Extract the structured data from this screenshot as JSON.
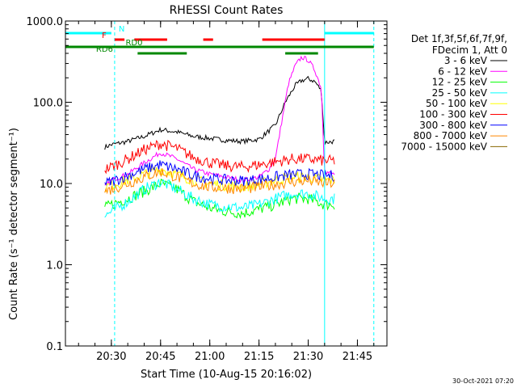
{
  "chart_data": {
    "type": "line",
    "title": "RHESSI Count Rates",
    "xlabel": "Start Time (10-Aug-15 20:16:02)",
    "ylabel": "Count Rate (s⁻¹ detector segment⁻¹)",
    "yscale": "log",
    "ylim": [
      0.1,
      1000
    ],
    "xlim": [
      "20:16",
      "21:54"
    ],
    "x_ticks": [
      "20:30",
      "20:45",
      "21:00",
      "21:15",
      "21:30",
      "21:45"
    ],
    "y_ticks": [
      "0.1",
      "1.0",
      "10.0",
      "100.0",
      "1000.0"
    ],
    "grid": false,
    "legend_position": "right",
    "legend_header": [
      "Det 1f,3f,5f,6f,7f,9f,",
      "FDecim 1, Att 0"
    ],
    "timestamp": "30-Oct-2021 07:20",
    "series": [
      {
        "name": "3 - 6 keV",
        "color": "#000000",
        "x": [
          "20:28",
          "20:30",
          "20:35",
          "20:40",
          "20:45",
          "20:50",
          "20:55",
          "21:00",
          "21:05",
          "21:10",
          "21:15",
          "21:20",
          "21:23",
          "21:26",
          "21:28",
          "21:30",
          "21:32",
          "21:34",
          "21:35",
          "21:38"
        ],
        "y": [
          28,
          30,
          33,
          38,
          46,
          43,
          38,
          36,
          34,
          33,
          35,
          52,
          100,
          160,
          185,
          195,
          180,
          140,
          32,
          33
        ]
      },
      {
        "name": "6 - 12 keV",
        "color": "#ff00ff",
        "x": [
          "20:28",
          "20:30",
          "20:35",
          "20:40",
          "20:45",
          "20:50",
          "20:55",
          "21:00",
          "21:05",
          "21:10",
          "21:15",
          "21:18",
          "21:20",
          "21:22",
          "21:24",
          "21:26",
          "21:28",
          "21:30",
          "21:32",
          "21:34",
          "21:35",
          "21:38"
        ],
        "y": [
          9,
          11,
          13,
          18,
          24,
          20,
          15,
          13,
          12,
          11,
          12,
          15,
          20,
          60,
          170,
          280,
          360,
          330,
          250,
          150,
          14,
          13
        ]
      },
      {
        "name": "12 - 25 keV",
        "color": "#00ff00",
        "x": [
          "20:28",
          "20:30",
          "20:35",
          "20:40",
          "20:45",
          "20:50",
          "20:55",
          "21:00",
          "21:05",
          "21:10",
          "21:15",
          "21:20",
          "21:25",
          "21:30",
          "21:35",
          "21:38"
        ],
        "y": [
          5,
          5.5,
          6.5,
          8,
          10,
          8.5,
          6,
          5,
          4.5,
          4.3,
          4.8,
          5.5,
          6.5,
          6.5,
          5.5,
          5.5
        ]
      },
      {
        "name": "25 - 50 keV",
        "color": "#00ffff",
        "x": [
          "20:28",
          "20:30",
          "20:35",
          "20:40",
          "20:45",
          "20:50",
          "20:55",
          "21:00",
          "21:05",
          "21:10",
          "21:15",
          "21:20",
          "21:25",
          "21:30",
          "21:35",
          "21:38"
        ],
        "y": [
          4,
          4.5,
          6,
          8.5,
          10.5,
          8.5,
          6.5,
          5.5,
          5.2,
          5,
          5.5,
          6.5,
          7.5,
          7.5,
          6.5,
          6.5
        ]
      },
      {
        "name": "50 - 100 keV",
        "color": "#ffff00",
        "x": [
          "20:28",
          "20:30",
          "20:35",
          "20:40",
          "20:45",
          "20:50",
          "20:55",
          "21:00",
          "21:05",
          "21:10",
          "21:15",
          "21:20",
          "21:25",
          "21:30",
          "21:35",
          "21:38"
        ],
        "y": [
          9,
          9.5,
          11,
          13,
          15,
          13,
          11,
          10,
          9.5,
          9.2,
          9.8,
          11,
          12,
          12,
          11,
          11
        ]
      },
      {
        "name": "100 - 300 keV",
        "color": "#ff0000",
        "x": [
          "20:28",
          "20:30",
          "20:35",
          "20:40",
          "20:45",
          "20:50",
          "20:55",
          "21:00",
          "21:05",
          "21:10",
          "21:15",
          "21:20",
          "21:25",
          "21:30",
          "21:35",
          "21:38"
        ],
        "y": [
          15,
          16,
          20,
          26,
          31,
          27,
          21,
          18,
          16.5,
          16,
          17,
          18.5,
          20,
          20,
          19,
          19
        ]
      },
      {
        "name": "300 - 800 keV",
        "color": "#0000ff",
        "x": [
          "20:28",
          "20:30",
          "20:35",
          "20:40",
          "20:45",
          "20:50",
          "20:55",
          "21:00",
          "21:05",
          "21:10",
          "21:15",
          "21:20",
          "21:25",
          "21:30",
          "21:35",
          "21:38"
        ],
        "y": [
          10,
          10.5,
          12.5,
          15,
          17,
          15,
          12.5,
          11.5,
          11,
          10.8,
          11.2,
          12,
          12.8,
          13,
          12.5,
          12.5
        ]
      },
      {
        "name": "800 - 7000 keV",
        "color": "#ff8800",
        "x": [
          "20:28",
          "20:30",
          "20:35",
          "20:40",
          "20:45",
          "20:50",
          "20:55",
          "21:00",
          "21:05",
          "21:10",
          "21:15",
          "21:20",
          "21:25",
          "21:30",
          "21:35",
          "21:38"
        ],
        "y": [
          8,
          8.5,
          10,
          12,
          14,
          12,
          10,
          9,
          8.8,
          8.6,
          9,
          9.8,
          10.5,
          10.8,
          10,
          10
        ]
      },
      {
        "name": "7000 - 15000 keV",
        "color": "#886600",
        "x": [],
        "y": []
      }
    ],
    "annotations": {
      "attenuator_segments": [
        {
          "start": "20:16",
          "end": "20:30",
          "color": "#00ffff"
        },
        {
          "start": "21:35",
          "end": "21:50",
          "color": "#00ffff"
        }
      ],
      "vertical_lines": [
        {
          "time": "20:16",
          "style": "solid",
          "color": "#00ffff"
        },
        {
          "time": "20:31",
          "style": "dashed",
          "color": "#00ffff"
        },
        {
          "time": "21:35",
          "style": "solid",
          "color": "#00ffff"
        },
        {
          "time": "21:50",
          "style": "dashed",
          "color": "#00ffff"
        }
      ],
      "flag_labels": [
        {
          "text": "N",
          "time": "20:31",
          "row": 0,
          "color": "#00ffff"
        },
        {
          "text": "F",
          "time": "20:29",
          "row": 1,
          "color": "#ff0000"
        },
        {
          "text": "RD0",
          "time": "20:40",
          "row": 2,
          "color": "#008800"
        },
        {
          "text": "RD6",
          "time": "20:31",
          "row": 3,
          "color": "#008800"
        }
      ],
      "flag_bars": [
        {
          "start": "20:31",
          "end": "20:34",
          "row": 1,
          "color": "#ff0000"
        },
        {
          "start": "20:37",
          "end": "20:47",
          "row": 1,
          "color": "#ff0000"
        },
        {
          "start": "20:58",
          "end": "21:01",
          "row": 1,
          "color": "#ff0000"
        },
        {
          "start": "21:16",
          "end": "21:35",
          "row": 1,
          "color": "#ff0000"
        },
        {
          "start": "20:16",
          "end": "21:50",
          "row": 2,
          "color": "#008800"
        },
        {
          "start": "20:38",
          "end": "20:53",
          "row": 3,
          "color": "#008800"
        },
        {
          "start": "21:23",
          "end": "21:33",
          "row": 3,
          "color": "#008800"
        }
      ]
    }
  }
}
